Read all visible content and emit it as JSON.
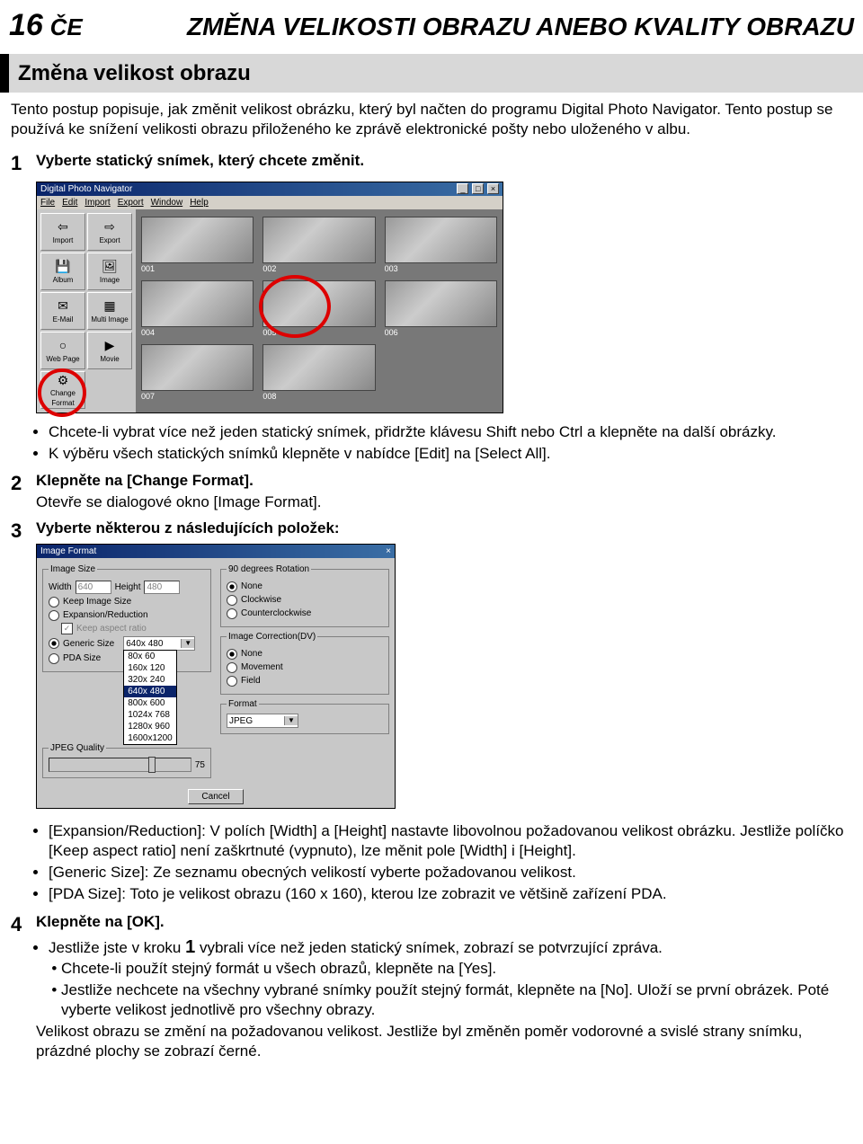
{
  "header": {
    "page_number": "16",
    "lang": "ČE",
    "chapter_title": "ZMĚNA VELIKOSTI OBRAZU ANEBO KVALITY OBRAZU"
  },
  "section_heading": "Změna velikost obrazu",
  "intro": "Tento postup popisuje, jak změnit velikost obrázku, který byl načten do programu Digital Photo Navigator. Tento postup se používá ke snížení velikosti obrazu přiloženého ke zprávě elektronické pošty nebo uloženého v albu.",
  "steps": {
    "s1": {
      "num": "1",
      "title": "Vyberte statický snímek, který chcete změnit."
    },
    "app": {
      "title": "Digital Photo Navigator",
      "menus": [
        "File",
        "Edit",
        "Import",
        "Export",
        "Window",
        "Help"
      ],
      "tools": [
        {
          "label": "Import",
          "glyph": "⇦"
        },
        {
          "label": "Export",
          "glyph": "⇨"
        },
        {
          "label": "Album",
          "glyph": "💾"
        },
        {
          "label": "Image",
          "glyph": "🖼"
        },
        {
          "label": "E-Mail",
          "glyph": "✉"
        },
        {
          "label": "Multi Image",
          "glyph": "▦"
        },
        {
          "label": "Web Page",
          "glyph": "○"
        },
        {
          "label": "Movie",
          "glyph": "▶"
        },
        {
          "label": "Change Format",
          "glyph": "⚙"
        }
      ],
      "thumbs": [
        "001",
        "002",
        "003",
        "004",
        "005",
        "006",
        "007",
        "008"
      ],
      "highlighted_thumb_index": 4,
      "highlighted_tool_index": 8
    },
    "s1_bullets": [
      "Chcete-li vybrat více než jeden statický snímek, přidržte klávesu Shift nebo Ctrl a klepněte na další obrázky.",
      "K výběru všech statických snímků klepněte v nabídce [Edit] na [Select All]."
    ],
    "s2": {
      "num": "2",
      "title": "Klepněte na [Change Format].",
      "line": "Otevře se dialogové okno [Image Format]."
    },
    "s3": {
      "num": "3",
      "title": "Vyberte některou z následujících položek:"
    },
    "dialog": {
      "title": "Image Format",
      "image_size_legend": "Image Size",
      "width_label": "Width",
      "width_value": "640",
      "height_label": "Height",
      "height_value": "480",
      "keep_image_size": "Keep Image Size",
      "expansion": "Expansion/Reduction",
      "keep_aspect": "Keep aspect ratio",
      "generic_size": "Generic Size",
      "pda_size": "PDA Size",
      "generic_selected": "640x 480",
      "size_options": [
        "80x 60",
        "160x 120",
        "320x 240",
        "640x 480",
        "800x 600",
        "1024x 768",
        "1280x 960",
        "1600x1200"
      ],
      "jpeg_legend": "JPEG Quality",
      "jpeg_value": "75",
      "rotation_legend": "90 degrees Rotation",
      "rot_none": "None",
      "rot_cw": "Clockwise",
      "rot_ccw": "Counterclockwise",
      "correction_legend": "Image Correction(DV)",
      "cor_none": "None",
      "cor_move": "Movement",
      "cor_field": "Field",
      "format_legend": "Format",
      "format_value": "JPEG",
      "cancel": "Cancel"
    },
    "s3_bullets": [
      "[Expansion/Reduction]: V polích [Width] a [Height] nastavte libovolnou požadovanou velikost obrázku. Jestliže políčko [Keep aspect ratio] není zaškrtnuté (vypnuto), lze měnit pole [Width] i [Height].",
      "[Generic Size]: Ze seznamu obecných velikostí vyberte požadovanou velikost.",
      "[PDA Size]: Toto je velikost obrazu (160 x 160), kterou lze zobrazit ve většině zařízení PDA."
    ],
    "s4": {
      "num": "4",
      "title": "Klepněte na [OK].",
      "b1_prefix": "Jestliže jste v kroku ",
      "b1_num": "1",
      "b1_suffix": " vybrali více než jeden statický snímek, zobrazí se potvrzující zpráva.",
      "sub1": "Chcete-li použít stejný formát u všech obrazů, klepněte na [Yes].",
      "sub2": "Jestliže nechcete na všechny vybrané snímky použít stejný formát, klepněte na [No]. Uloží se první obrázek. Poté vyberte velikost jednotlivě pro všechny obrazy.",
      "tail": "Velikost obrazu se změní na požadovanou velikost. Jestliže byl změněn poměr vodorovné a svislé strany snímku, prázdné plochy se zobrazí černé."
    }
  }
}
